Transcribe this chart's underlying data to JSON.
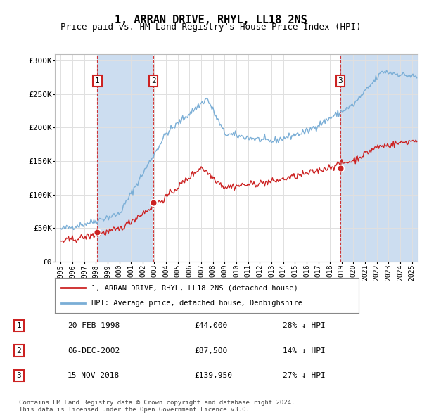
{
  "title": "1, ARRAN DRIVE, RHYL, LL18 2NS",
  "subtitle": "Price paid vs. HM Land Registry's House Price Index (HPI)",
  "title_fontsize": 11,
  "subtitle_fontsize": 9,
  "xlim": [
    1994.5,
    2025.5
  ],
  "ylim": [
    0,
    310000
  ],
  "yticks": [
    0,
    50000,
    100000,
    150000,
    200000,
    250000,
    300000
  ],
  "ytick_labels": [
    "£0",
    "£50K",
    "£100K",
    "£150K",
    "£200K",
    "£250K",
    "£300K"
  ],
  "hpi_color": "#7aaed6",
  "price_color": "#cc2222",
  "sale_dates": [
    1998.13,
    2002.92,
    2018.88
  ],
  "sale_prices": [
    44000,
    87500,
    139950
  ],
  "sale_labels": [
    "1",
    "2",
    "3"
  ],
  "sale_hpi_pct": [
    "28% ↓ HPI",
    "14% ↓ HPI",
    "27% ↓ HPI"
  ],
  "sale_date_strs": [
    "20-FEB-1998",
    "06-DEC-2002",
    "15-NOV-2018"
  ],
  "sale_price_strs": [
    "£44,000",
    "£87,500",
    "£139,950"
  ],
  "legend_line1": "1, ARRAN DRIVE, RHYL, LL18 2NS (detached house)",
  "legend_line2": "HPI: Average price, detached house, Denbighshire",
  "footer": "Contains HM Land Registry data © Crown copyright and database right 2024.\nThis data is licensed under the Open Government Licence v3.0.",
  "background_color": "#ffffff",
  "shade_color": "#ccddf0",
  "grid_color": "#e0e0e0"
}
